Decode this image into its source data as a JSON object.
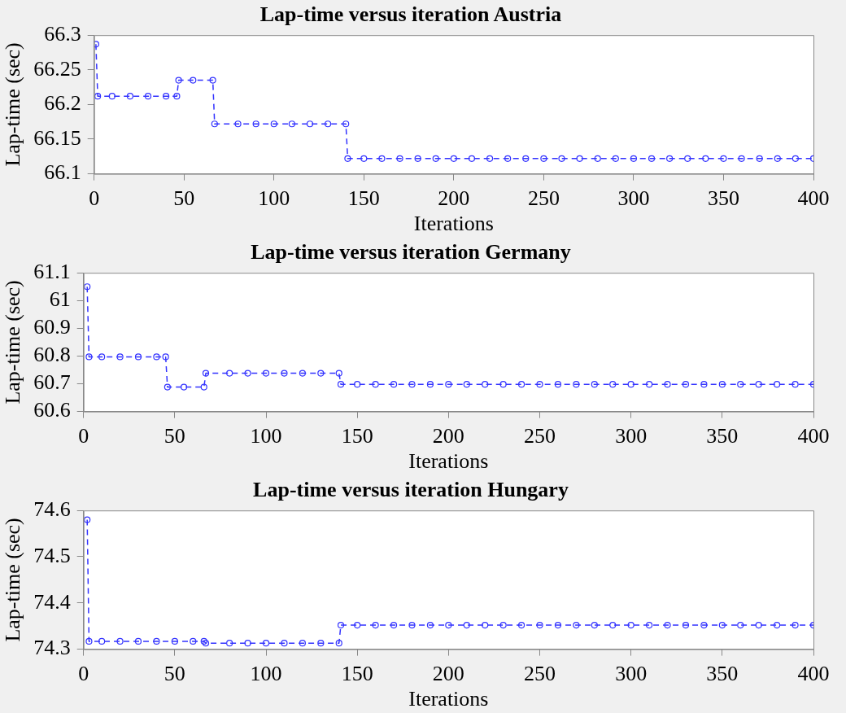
{
  "chart_data": [
    {
      "type": "line",
      "title": "Lap-time versus iteration Austria",
      "xlabel": "Iterations",
      "ylabel": "Lap-time (sec)",
      "xlim": [
        0,
        400
      ],
      "xticks": [
        0,
        50,
        100,
        150,
        200,
        250,
        300,
        350,
        400
      ],
      "ylim": [
        66.1,
        66.3
      ],
      "yticks": [
        66.1,
        66.15,
        66.2,
        66.25,
        66.3
      ],
      "grid": false,
      "legend": false,
      "marker": "circle",
      "line_style": "dashed",
      "series": [
        {
          "color": "#3333ff",
          "x": [
            1,
            2,
            10,
            20,
            30,
            40,
            46,
            47,
            55,
            66,
            67,
            80,
            90,
            100,
            110,
            120,
            130,
            140,
            141,
            150,
            160,
            170,
            180,
            190,
            200,
            210,
            220,
            230,
            240,
            250,
            260,
            270,
            280,
            290,
            300,
            310,
            320,
            330,
            340,
            350,
            360,
            370,
            380,
            390,
            400
          ],
          "values": [
            66.287,
            66.212,
            66.212,
            66.212,
            66.212,
            66.212,
            66.212,
            66.235,
            66.235,
            66.235,
            66.172,
            66.172,
            66.172,
            66.172,
            66.172,
            66.172,
            66.172,
            66.172,
            66.122,
            66.122,
            66.122,
            66.122,
            66.122,
            66.122,
            66.122,
            66.122,
            66.122,
            66.122,
            66.122,
            66.122,
            66.122,
            66.122,
            66.122,
            66.122,
            66.122,
            66.122,
            66.122,
            66.122,
            66.122,
            66.122,
            66.122,
            66.122,
            66.122,
            66.122,
            66.122
          ]
        }
      ]
    },
    {
      "type": "line",
      "title": "Lap-time versus iteration Germany",
      "xlabel": "Iterations",
      "ylabel": "Lap-time (sec)",
      "xlim": [
        0,
        400
      ],
      "xticks": [
        0,
        50,
        100,
        150,
        200,
        250,
        300,
        350,
        400
      ],
      "ylim": [
        60.6,
        61.1
      ],
      "yticks": [
        60.6,
        60.7,
        60.8,
        60.9,
        61,
        61.1
      ],
      "grid": false,
      "legend": false,
      "marker": "circle",
      "line_style": "dashed",
      "series": [
        {
          "color": "#3333ff",
          "x": [
            2,
            3,
            10,
            20,
            30,
            40,
            45,
            46,
            55,
            66,
            67,
            80,
            90,
            100,
            110,
            120,
            130,
            140,
            141,
            150,
            160,
            170,
            180,
            190,
            200,
            210,
            220,
            230,
            240,
            250,
            260,
            270,
            280,
            290,
            300,
            310,
            320,
            330,
            340,
            350,
            360,
            370,
            380,
            390,
            400
          ],
          "values": [
            61.05,
            60.797,
            60.797,
            60.797,
            60.797,
            60.797,
            60.797,
            60.688,
            60.688,
            60.688,
            60.738,
            60.738,
            60.738,
            60.738,
            60.738,
            60.738,
            60.738,
            60.738,
            60.698,
            60.698,
            60.698,
            60.698,
            60.698,
            60.698,
            60.698,
            60.698,
            60.698,
            60.698,
            60.698,
            60.698,
            60.698,
            60.698,
            60.698,
            60.698,
            60.698,
            60.698,
            60.698,
            60.698,
            60.698,
            60.698,
            60.698,
            60.698,
            60.698,
            60.698,
            60.698
          ]
        }
      ]
    },
    {
      "type": "line",
      "title": "Lap-time versus iteration Hungary",
      "xlabel": "Iterations",
      "ylabel": "Lap-time (sec)",
      "xlim": [
        0,
        400
      ],
      "xticks": [
        0,
        50,
        100,
        150,
        200,
        250,
        300,
        350,
        400
      ],
      "ylim": [
        74.3,
        74.6
      ],
      "yticks": [
        74.3,
        74.4,
        74.5,
        74.6
      ],
      "grid": false,
      "legend": false,
      "marker": "circle",
      "line_style": "dashed",
      "series": [
        {
          "color": "#3333ff",
          "x": [
            2,
            3,
            10,
            20,
            30,
            40,
            50,
            60,
            66,
            67,
            80,
            90,
            100,
            110,
            120,
            130,
            140,
            141,
            150,
            160,
            170,
            180,
            190,
            200,
            210,
            220,
            230,
            240,
            250,
            260,
            270,
            280,
            290,
            300,
            310,
            320,
            330,
            340,
            350,
            360,
            370,
            380,
            390,
            400
          ],
          "values": [
            74.58,
            74.317,
            74.317,
            74.317,
            74.317,
            74.317,
            74.317,
            74.317,
            74.317,
            74.313,
            74.313,
            74.313,
            74.313,
            74.313,
            74.313,
            74.313,
            74.313,
            74.352,
            74.352,
            74.352,
            74.352,
            74.352,
            74.352,
            74.352,
            74.352,
            74.352,
            74.352,
            74.352,
            74.352,
            74.352,
            74.352,
            74.352,
            74.352,
            74.352,
            74.352,
            74.352,
            74.352,
            74.352,
            74.352,
            74.352,
            74.352,
            74.352,
            74.352,
            74.352
          ]
        }
      ]
    }
  ]
}
